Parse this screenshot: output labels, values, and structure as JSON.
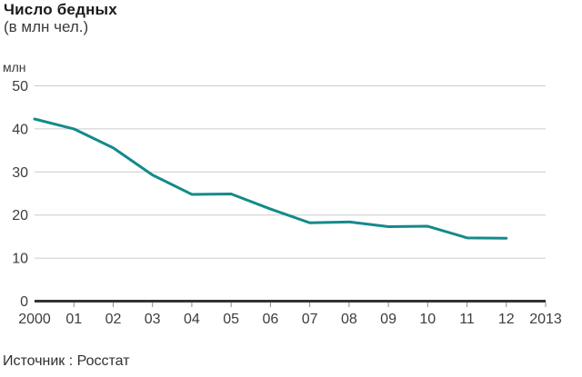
{
  "header": {
    "title": "Число бедных",
    "subtitle": "(в млн чел.)"
  },
  "footer": {
    "source": "Источник : Росстат"
  },
  "colors": {
    "line": "#148a8c",
    "grid": "#cccccc",
    "axis": "#333333",
    "tick": "#8a8a8a",
    "axis_text": "#3d3d3d"
  },
  "chart_data": {
    "type": "line",
    "title": "Число бедных",
    "subtitle": "(в млн чел.)",
    "unit_label": "млн",
    "source": "Источник : Росстат",
    "x": [
      2000,
      2001,
      2002,
      2003,
      2004,
      2005,
      2006,
      2007,
      2008,
      2009,
      2010,
      2011,
      2012
    ],
    "values": [
      42.3,
      40.0,
      35.6,
      29.3,
      24.8,
      24.9,
      21.4,
      18.2,
      18.4,
      17.3,
      17.4,
      14.7,
      14.6
    ],
    "x_tick_labels": [
      "2000",
      "01",
      "02",
      "03",
      "04",
      "05",
      "06",
      "07",
      "08",
      "09",
      "10",
      "11",
      "12",
      "2013"
    ],
    "y_ticks": [
      0,
      10,
      20,
      30,
      40,
      50
    ],
    "xlim": [
      2000,
      2013
    ],
    "ylim": [
      0,
      50
    ],
    "xlabel": "",
    "ylabel": "млн",
    "grid": true,
    "legend": "none",
    "line_color": "#148a8c"
  }
}
